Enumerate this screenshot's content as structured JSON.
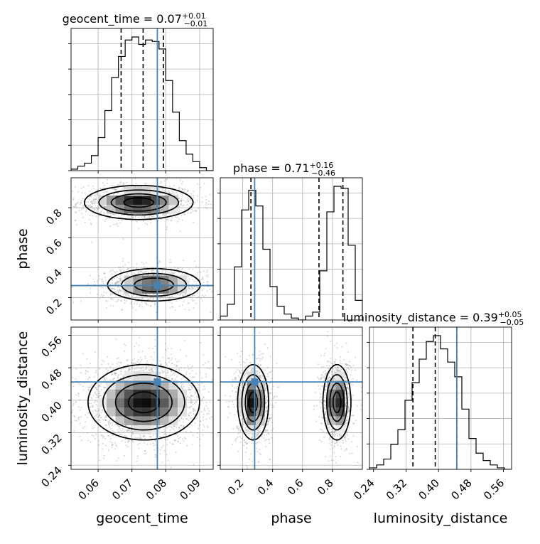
{
  "chart_data": {
    "type": "corner",
    "truth_color": "#4682b4",
    "parameters": [
      "geocent_time",
      "phase",
      "luminosity_distance"
    ],
    "axes_labels": {
      "geocent_time": "geocent_time",
      "phase": "phase",
      "luminosity_distance": "luminosity_distance"
    },
    "truths": {
      "geocent_time": 0.0775,
      "phase": 0.28,
      "luminosity_distance": 0.445
    },
    "ranges": {
      "geocent_time": [
        0.052,
        0.094
      ],
      "phase": [
        0.05,
        1.0
      ],
      "luminosity_distance": [
        0.23,
        0.58
      ]
    },
    "ticks": {
      "geocent_time": {
        "values": [
          0.06,
          0.07,
          0.08,
          0.09
        ],
        "labels": [
          "0.06",
          "0.07",
          "0.08",
          "0.09"
        ]
      },
      "phase": {
        "values": [
          0.2,
          0.4,
          0.6,
          0.8
        ],
        "labels": [
          "0.2",
          "0.4",
          "0.6",
          "0.8"
        ]
      },
      "luminosity_distance": {
        "values": [
          0.24,
          0.32,
          0.4,
          0.48,
          0.56
        ],
        "labels": [
          "0.24",
          "0.32",
          "0.40",
          "0.48",
          "0.56"
        ]
      }
    },
    "titles": [
      {
        "param": "geocent_time",
        "text": "geocent_time = 0.07",
        "plus": "+0.01",
        "minus": "−0.01"
      },
      {
        "param": "phase",
        "text": "phase = 0.71",
        "plus": "+0.16",
        "minus": "−0.46"
      },
      {
        "param": "luminosity_distance",
        "text": "luminosity_distance = 0.39",
        "plus": "+0.05",
        "minus": "−0.05"
      }
    ],
    "quantiles": {
      "geocent_time": [
        0.0668,
        0.0733,
        0.0793
      ],
      "phase": [
        0.255,
        0.71,
        0.87
      ],
      "luminosity_distance": [
        0.337,
        0.392,
        0.445
      ]
    },
    "histograms": {
      "geocent_time": {
        "edges": [
          0.052,
          0.054,
          0.056,
          0.058,
          0.06,
          0.062,
          0.064,
          0.066,
          0.068,
          0.07,
          0.072,
          0.074,
          0.076,
          0.078,
          0.08,
          0.082,
          0.084,
          0.086,
          0.088,
          0.09,
          0.092,
          0.094
        ],
        "counts": [
          1,
          3,
          5,
          10,
          22,
          40,
          62,
          76,
          87,
          89,
          84,
          87,
          86,
          81,
          60,
          39,
          20,
          11,
          6,
          2,
          0
        ]
      },
      "phase": {
        "edges": [
          0.05,
          0.0975,
          0.145,
          0.1925,
          0.24,
          0.2875,
          0.335,
          0.3825,
          0.43,
          0.4775,
          0.525,
          0.5725,
          0.62,
          0.6675,
          0.715,
          0.7625,
          0.81,
          0.8575,
          0.905,
          0.9525,
          1.0
        ],
        "counts": [
          2,
          8,
          27,
          56,
          66,
          58,
          36,
          17,
          7,
          3,
          1,
          0,
          2,
          4,
          25,
          55,
          68,
          67,
          38,
          10
        ]
      },
      "luminosity_distance": {
        "edges": [
          0.23,
          0.2475,
          0.265,
          0.2825,
          0.3,
          0.3175,
          0.335,
          0.3525,
          0.37,
          0.3875,
          0.405,
          0.4225,
          0.44,
          0.4575,
          0.475,
          0.4925,
          0.51,
          0.5275,
          0.545,
          0.5625,
          0.58
        ],
        "counts": [
          1,
          3,
          7,
          17,
          27,
          47,
          59,
          75,
          87,
          91,
          82,
          73,
          63,
          41,
          21,
          11,
          6,
          3,
          1,
          0
        ]
      }
    },
    "density_blobs": {
      "phase_vs_geocent_time": [
        {
          "cx": 0.072,
          "cy": 0.835,
          "sx": 0.0078,
          "sy": 0.055,
          "w": 0.55,
          "n": 1200
        },
        {
          "cx": 0.0765,
          "cy": 0.285,
          "sx": 0.007,
          "sy": 0.055,
          "w": 0.45,
          "n": 1000
        }
      ],
      "luminosity_distance_vs_geocent_time": [
        {
          "cx": 0.0735,
          "cy": 0.395,
          "sx": 0.008,
          "sy": 0.045,
          "w": 1.0,
          "n": 2200
        }
      ],
      "luminosity_distance_vs_phase": [
        {
          "cx": 0.27,
          "cy": 0.395,
          "sx": 0.05,
          "sy": 0.045,
          "w": 0.5,
          "n": 1100
        },
        {
          "cx": 0.83,
          "cy": 0.395,
          "sx": 0.045,
          "sy": 0.045,
          "w": 0.5,
          "n": 1100
        }
      ]
    }
  }
}
